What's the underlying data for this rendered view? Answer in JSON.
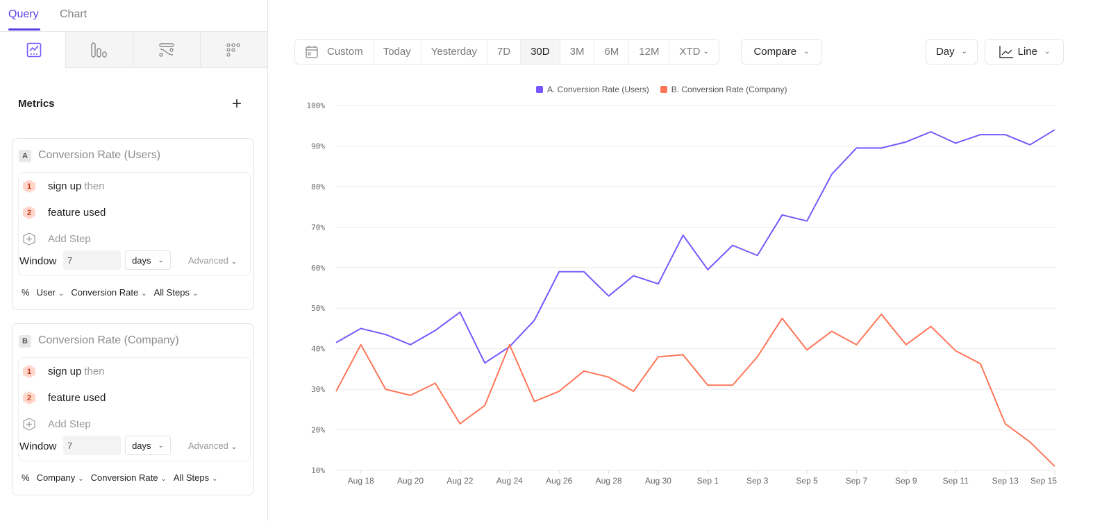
{
  "tabs": [
    {
      "label": "Query"
    },
    {
      "label": "Chart"
    }
  ],
  "chart_types": [
    "insights-icon",
    "bars-icon",
    "flows-icon",
    "dots-icon"
  ],
  "metrics": {
    "heading": "Metrics",
    "add_icon": "plus-icon",
    "cards": [
      {
        "letter": "A",
        "title": "Conversion Rate (Users)",
        "steps": [
          {
            "num": "1",
            "name": "sign up",
            "suffix": "then"
          },
          {
            "num": "2",
            "name": "feature used",
            "suffix": ""
          }
        ],
        "add_step": "Add Step",
        "window_label": "Window",
        "window_value": "7",
        "window_unit": "days",
        "advanced": "Advanced",
        "footer": {
          "pct": "%",
          "entity": "User",
          "measure": "Conversion Rate",
          "steps": "All Steps"
        }
      },
      {
        "letter": "B",
        "title": "Conversion Rate (Company)",
        "steps": [
          {
            "num": "1",
            "name": "sign up",
            "suffix": "then"
          },
          {
            "num": "2",
            "name": "feature used",
            "suffix": ""
          }
        ],
        "add_step": "Add Step",
        "window_label": "Window",
        "window_value": "7",
        "window_unit": "days",
        "advanced": "Advanced",
        "footer": {
          "pct": "%",
          "entity": "Company",
          "measure": "Conversion Rate",
          "steps": "All Steps"
        }
      }
    ]
  },
  "toolbar": {
    "ranges": [
      "Custom",
      "Today",
      "Yesterday",
      "7D",
      "30D",
      "3M",
      "6M",
      "12M",
      "XTD"
    ],
    "selected": "30D",
    "compare": "Compare",
    "interval": "Day",
    "chart_type": "Line"
  },
  "colors": {
    "accent": "#5b3ee6",
    "series_a": "#7856ff",
    "series_b": "#ff7557"
  },
  "chart_data": {
    "type": "line",
    "ylim": [
      10,
      100
    ],
    "yticks": [
      "10%",
      "20%",
      "30%",
      "40%",
      "50%",
      "60%",
      "70%",
      "80%",
      "90%",
      "100%"
    ],
    "grid": true,
    "legend_position": "top-center",
    "x": [
      "Aug 17",
      "Aug 18",
      "Aug 19",
      "Aug 20",
      "Aug 21",
      "Aug 22",
      "Aug 23",
      "Aug 24",
      "Aug 25",
      "Aug 26",
      "Aug 27",
      "Aug 28",
      "Aug 29",
      "Aug 30",
      "Aug 31",
      "Sep 1",
      "Sep 2",
      "Sep 3",
      "Sep 4",
      "Sep 5",
      "Sep 6",
      "Sep 7",
      "Sep 8",
      "Sep 9",
      "Sep 10",
      "Sep 11",
      "Sep 12",
      "Sep 13",
      "Sep 14",
      "Sep 15"
    ],
    "xticks": [
      "Aug 18",
      "Aug 20",
      "Aug 22",
      "Aug 24",
      "Aug 26",
      "Aug 28",
      "Aug 30",
      "Sep 1",
      "Sep 3",
      "Sep 5",
      "Sep 7",
      "Sep 9",
      "Sep 11",
      "Sep 13",
      "Sep 15"
    ],
    "series": [
      {
        "name": "A. Conversion Rate (Users)",
        "color": "#7856ff",
        "values": [
          41.5,
          45,
          43.5,
          41,
          44.5,
          49,
          36.5,
          40.5,
          47,
          59,
          59,
          53,
          58,
          56,
          68,
          59.5,
          65.5,
          63,
          73,
          71.5,
          83,
          89.5,
          89.5,
          91,
          93.5,
          90.7,
          92.8,
          92.8,
          90.3,
          94
        ]
      },
      {
        "name": "B. Conversion Rate (Company)",
        "color": "#ff7557",
        "values": [
          29.5,
          41,
          30,
          28.5,
          31.5,
          21.5,
          26,
          41,
          27,
          29.5,
          34.5,
          33,
          29.5,
          38,
          38.5,
          31,
          31,
          38,
          47.5,
          39.7,
          44.3,
          41,
          48.5,
          41,
          45.5,
          39.5,
          36.3,
          21.5,
          17,
          11
        ]
      }
    ]
  }
}
